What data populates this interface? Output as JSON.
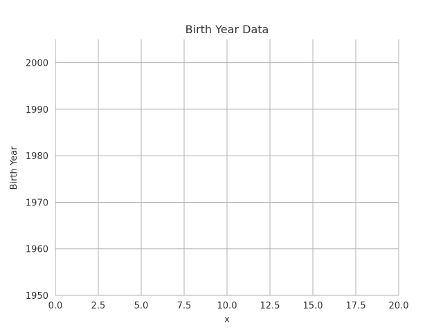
{
  "chart_data": {
    "type": "scatter",
    "title": "Birth Year Data",
    "xlabel": "x",
    "ylabel": "Birth Year",
    "xlim": [
      0,
      20
    ],
    "ylim": [
      1950,
      2005
    ],
    "x_ticks": [
      0.0,
      2.5,
      5.0,
      7.5,
      10.0,
      12.5,
      15.0,
      17.5,
      20.0
    ],
    "x_tick_labels": [
      "0.0",
      "2.5",
      "5.0",
      "7.5",
      "10.0",
      "12.5",
      "15.0",
      "17.5",
      "20.0"
    ],
    "y_ticks": [
      1950,
      1960,
      1970,
      1980,
      1990,
      2000
    ],
    "y_tick_labels": [
      "1950",
      "1960",
      "1970",
      "1980",
      "1990",
      "2000"
    ],
    "grid": true,
    "series": [],
    "colors": {
      "grid": "#b0b0b0",
      "text": "#333333",
      "background": "#ffffff"
    }
  }
}
